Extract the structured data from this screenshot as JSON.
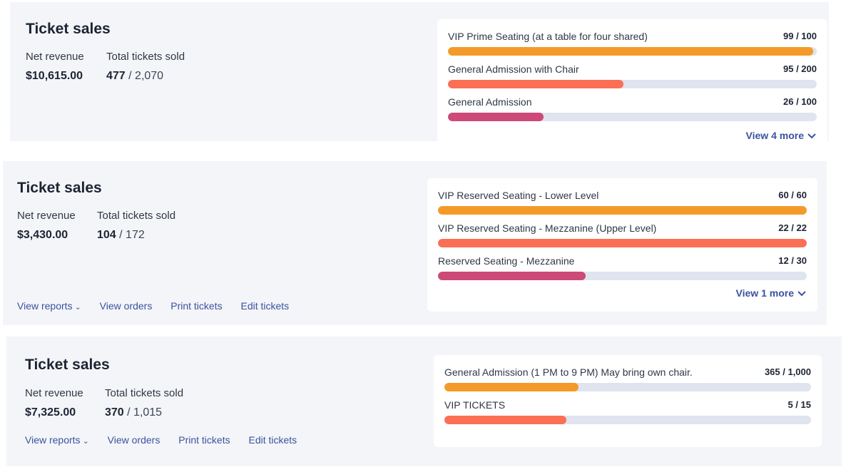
{
  "sections": [
    {
      "title": "Ticket sales",
      "net_revenue_label": "Net revenue",
      "total_sold_label": "Total tickets sold",
      "net_revenue": "$10,615.00",
      "tickets_sold": "477",
      "tickets_total": " / 2,070",
      "tiers": [
        {
          "name": "VIP Prime Seating (at a table for four shared)",
          "count": "99 / 100",
          "sold": 99,
          "capacity": 100,
          "color": "#f39a2b"
        },
        {
          "name": "General Admission with Chair",
          "count": "95 / 200",
          "sold": 95,
          "capacity": 200,
          "color": "#fb6f55"
        },
        {
          "name": "General Admission",
          "count": "26 / 100",
          "sold": 26,
          "capacity": 100,
          "color": "#cc4978"
        }
      ],
      "view_more": "View 4 more"
    },
    {
      "title": "Ticket sales",
      "net_revenue_label": "Net revenue",
      "total_sold_label": "Total tickets sold",
      "net_revenue": "$3,430.00",
      "tickets_sold": "104",
      "tickets_total": " / 172",
      "tiers": [
        {
          "name": "VIP Reserved Seating - Lower Level",
          "count": "60 / 60",
          "sold": 60,
          "capacity": 60,
          "color": "#f39a2b"
        },
        {
          "name": "VIP Reserved Seating - Mezzanine (Upper Level)",
          "count": "22 / 22",
          "sold": 22,
          "capacity": 22,
          "color": "#fb6f55"
        },
        {
          "name": "Reserved Seating - Mezzanine",
          "count": "12 / 30",
          "sold": 12,
          "capacity": 30,
          "color": "#cc4978"
        }
      ],
      "view_more": "View 1 more",
      "links": {
        "view_reports": "View reports",
        "view_orders": "View orders",
        "print_tickets": "Print tickets",
        "edit_tickets": "Edit tickets"
      }
    },
    {
      "title": "Ticket sales",
      "net_revenue_label": "Net revenue",
      "total_sold_label": "Total tickets sold",
      "net_revenue": "$7,325.00",
      "tickets_sold": "370",
      "tickets_total": " / 1,015",
      "tiers": [
        {
          "name": "General Admission (1 PM to 9 PM) May bring own chair.",
          "count": "365 / 1,000",
          "sold": 365,
          "capacity": 1000,
          "color": "#f39a2b"
        },
        {
          "name": "VIP TICKETS",
          "count": "5 / 15",
          "sold": 5,
          "capacity": 15,
          "color": "#fb6f55"
        }
      ],
      "links": {
        "view_reports": "View reports",
        "view_orders": "View orders",
        "print_tickets": "Print tickets",
        "edit_tickets": "Edit tickets"
      }
    }
  ]
}
